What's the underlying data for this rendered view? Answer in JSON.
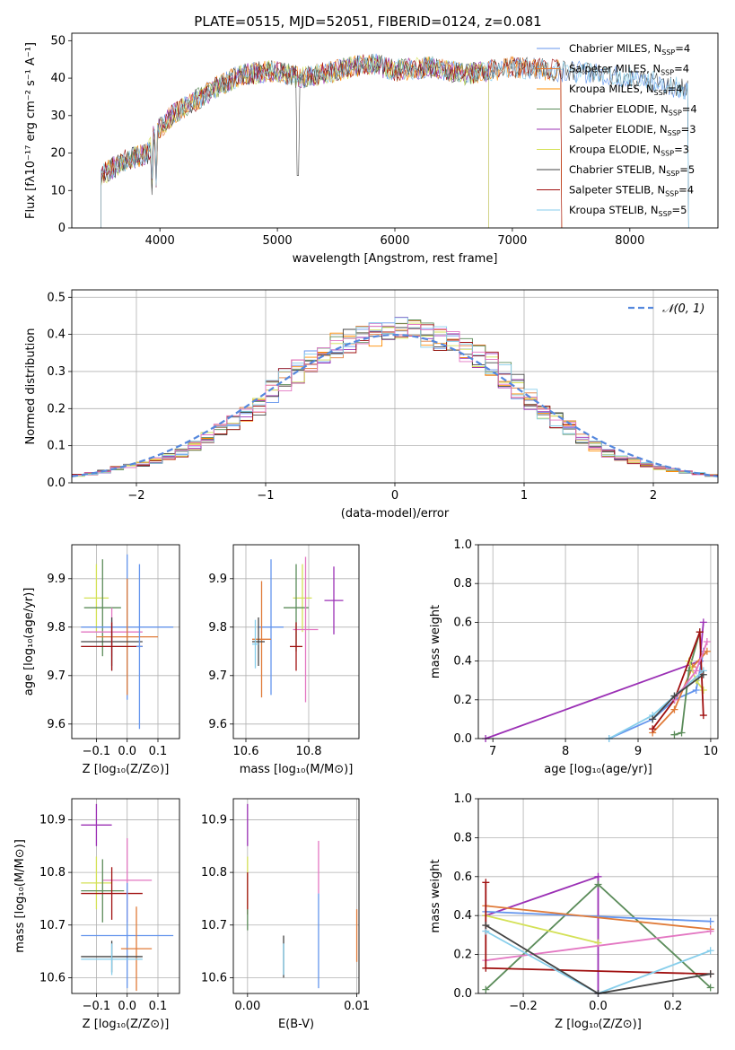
{
  "colors": {
    "C0": "#6495ed",
    "C1": "#e07b39",
    "C2": "#ff8c00",
    "C3": "#5b8c5a",
    "C4": "#9b30b5",
    "C5": "#d4e157",
    "C6": "#444444",
    "C7": "#a01010",
    "C8": "#87ceeb",
    "C9": "#e377c2",
    "CN": "#5588dd"
  },
  "chart_data": [
    {
      "type": "line",
      "title": "PLATE=0515, MJD=52051, FIBERID=0124, z=0.081",
      "xlabel": "wavelength [Angstrom, rest frame]",
      "ylabel": "Flux [fλ10⁻¹⁷ erg cm⁻² s⁻¹ A⁻¹]",
      "xlim": [
        3250,
        8750
      ],
      "ylim": [
        0,
        52
      ],
      "xticks": [
        "4000",
        "5000",
        "6000",
        "7000",
        "8000"
      ],
      "yticks": [
        "0",
        "10",
        "20",
        "30",
        "40",
        "50"
      ],
      "legend_position": "upper-right",
      "series": [
        {
          "name": "Chabrier MILES, N",
          "sub": "SSP",
          "tail": "=4",
          "color": "#6495ed",
          "x_range": [
            3500,
            8500
          ]
        },
        {
          "name": "Salpeter MILES, N",
          "sub": "SSP",
          "tail": "=4",
          "color": "#e07b39",
          "x_range": [
            3500,
            7420
          ]
        },
        {
          "name": "Kroupa MILES, N",
          "sub": "SSP",
          "tail": "=4",
          "color": "#ff8c00",
          "x_range": [
            3500,
            7420
          ]
        },
        {
          "name": "Chabrier ELODIE, N",
          "sub": "SSP",
          "tail": "=4",
          "color": "#5b8c5a",
          "x_range": [
            3500,
            6800
          ]
        },
        {
          "name": "Salpeter ELODIE, N",
          "sub": "SSP",
          "tail": "=3",
          "color": "#9b30b5",
          "x_range": [
            3500,
            6800
          ]
        },
        {
          "name": "Kroupa ELODIE, N",
          "sub": "SSP",
          "tail": "=3",
          "color": "#d4e157",
          "x_range": [
            3500,
            6800
          ]
        },
        {
          "name": "Chabrier STELIB, N",
          "sub": "SSP",
          "tail": "=5",
          "color": "#444444",
          "x_range": [
            3500,
            8500
          ]
        },
        {
          "name": "Salpeter STELIB, N",
          "sub": "SSP",
          "tail": "=4",
          "color": "#a01010",
          "x_range": [
            3500,
            7420
          ]
        },
        {
          "name": "Kroupa STELIB, N",
          "sub": "SSP",
          "tail": "=5",
          "color": "#87ceeb",
          "x_range": [
            3500,
            8500
          ]
        }
      ],
      "continuum": {
        "x": [
          3500,
          3700,
          3900,
          3950,
          4100,
          4300,
          4500,
          4700,
          5000,
          5200,
          5500,
          5800,
          6000,
          6300,
          6600,
          7000,
          7400,
          7800,
          8200,
          8500
        ],
        "y": [
          14,
          18,
          20,
          25,
          30,
          34,
          38,
          41,
          42,
          40,
          42,
          44,
          42,
          43,
          41,
          43,
          42,
          41,
          39,
          37
        ]
      }
    },
    {
      "type": "bar",
      "xlabel": "(data-model)/error",
      "ylabel": "Normed distribution",
      "xlim": [
        -2.5,
        2.5
      ],
      "ylim": [
        0,
        0.52
      ],
      "xticks": [
        "−2",
        "−1",
        "0",
        "1",
        "2"
      ],
      "yticks": [
        "0.0",
        "0.1",
        "0.2",
        "0.3",
        "0.4",
        "0.5"
      ],
      "grid": true,
      "legend": "𝒩(0, 1)",
      "legend_position": "upper-right",
      "bin_width": 0.1,
      "bin_start": -2.5,
      "base_values": [
        0.02,
        0.025,
        0.03,
        0.04,
        0.045,
        0.05,
        0.06,
        0.07,
        0.08,
        0.1,
        0.12,
        0.14,
        0.16,
        0.18,
        0.21,
        0.25,
        0.28,
        0.3,
        0.33,
        0.35,
        0.37,
        0.38,
        0.39,
        0.4,
        0.41,
        0.42,
        0.41,
        0.4,
        0.39,
        0.38,
        0.36,
        0.34,
        0.32,
        0.29,
        0.26,
        0.23,
        0.2,
        0.17,
        0.15,
        0.12,
        0.1,
        0.08,
        0.07,
        0.06,
        0.05,
        0.04,
        0.035,
        0.03,
        0.025,
        0.02
      ]
    },
    {
      "type": "scatter",
      "xlabel": "Z [log₁₀(Z/Z⊙)]",
      "ylabel": "age  [log₁₀(age/yr)]",
      "xlim": [
        -0.18,
        0.17
      ],
      "ylim": [
        9.57,
        9.97
      ],
      "xticks": [
        "−0.1",
        "0.0",
        "0.1"
      ],
      "yticks": [
        "9.6",
        "9.7",
        "9.8",
        "9.9"
      ],
      "points": [
        {
          "x": -0.1,
          "y": 9.86,
          "xe": 0.04,
          "ye": 0.07,
          "c": "#d4e157"
        },
        {
          "x": -0.08,
          "y": 9.84,
          "xe": 0.06,
          "ye": 0.1,
          "c": "#5b8c5a"
        },
        {
          "x": 0.0,
          "y": 9.8,
          "xe": 0.15,
          "ye": 0.15,
          "c": "#6495ed"
        },
        {
          "x": -0.05,
          "y": 9.79,
          "xe": 0.1,
          "ye": 0.05,
          "c": "#e377c2"
        },
        {
          "x": 0.0,
          "y": 9.78,
          "xe": 0.1,
          "ye": 0.12,
          "c": "#e07b39"
        },
        {
          "x": -0.05,
          "y": 9.77,
          "xe": 0.1,
          "ye": 0.05,
          "c": "#444444"
        },
        {
          "x": -0.05,
          "y": 9.76,
          "xe": 0.1,
          "ye": 0.05,
          "c": "#87ceeb"
        },
        {
          "x": -0.05,
          "y": 9.76,
          "xe": 0.1,
          "ye": 0.05,
          "c": "#a01010"
        },
        {
          "x": 0.04,
          "y": 9.76,
          "xe": 0.01,
          "ye": 0.17,
          "c": "#6495ed"
        }
      ]
    },
    {
      "type": "scatter",
      "xlabel": "mass [log₁₀(M/M⊙)]",
      "xlim": [
        10.56,
        10.96
      ],
      "ylim": [
        9.57,
        9.97
      ],
      "xticks": [
        "10.6",
        "10.8"
      ],
      "yticks": [
        "9.6",
        "9.7",
        "9.8",
        "9.9"
      ],
      "points": [
        {
          "x": 10.88,
          "y": 9.855,
          "xe": 0.03,
          "ye": 0.07,
          "c": "#9b30b5"
        },
        {
          "x": 10.78,
          "y": 9.86,
          "xe": 0.03,
          "ye": 0.07,
          "c": "#d4e157"
        },
        {
          "x": 10.76,
          "y": 9.84,
          "xe": 0.04,
          "ye": 0.09,
          "c": "#5b8c5a"
        },
        {
          "x": 10.68,
          "y": 9.8,
          "xe": 0.04,
          "ye": 0.14,
          "c": "#6495ed"
        },
        {
          "x": 10.79,
          "y": 9.795,
          "xe": 0.04,
          "ye": 0.15,
          "c": "#e377c2"
        },
        {
          "x": 10.65,
          "y": 9.775,
          "xe": 0.03,
          "ye": 0.12,
          "c": "#e07b39"
        },
        {
          "x": 10.64,
          "y": 9.77,
          "xe": 0.02,
          "ye": 0.05,
          "c": "#444444"
        },
        {
          "x": 10.63,
          "y": 9.765,
          "xe": 0.01,
          "ye": 0.05,
          "c": "#87ceeb"
        },
        {
          "x": 10.76,
          "y": 9.76,
          "xe": 0.02,
          "ye": 0.05,
          "c": "#a01010"
        }
      ]
    },
    {
      "type": "line",
      "xlabel": "age  [log₁₀(age/yr)]",
      "ylabel": "mass weight",
      "xlim": [
        6.8,
        10.1
      ],
      "ylim": [
        0,
        1
      ],
      "xticks": [
        "7",
        "8",
        "9",
        "10"
      ],
      "yticks": [
        "0.0",
        "0.2",
        "0.4",
        "0.6",
        "0.8",
        "1.0"
      ],
      "grid": true,
      "series": [
        {
          "c": "#9b30b5",
          "x": [
            6.9,
            9.85,
            9.9
          ],
          "y": [
            0,
            0.4,
            0.6
          ]
        },
        {
          "c": "#6495ed",
          "x": [
            8.6,
            9.2,
            9.5,
            9.8,
            9.9
          ],
          "y": [
            0,
            0.1,
            0.2,
            0.25,
            0.45
          ]
        },
        {
          "c": "#e07b39",
          "x": [
            9.2,
            9.5,
            9.75,
            9.95
          ],
          "y": [
            0.03,
            0.15,
            0.37,
            0.45
          ]
        },
        {
          "c": "#5b8c5a",
          "x": [
            9.5,
            9.6,
            9.7,
            9.85
          ],
          "y": [
            0.02,
            0.03,
            0.35,
            0.55
          ]
        },
        {
          "c": "#d4e157",
          "x": [
            9.7,
            9.8,
            9.9
          ],
          "y": [
            0.4,
            0.3,
            0.25
          ]
        },
        {
          "c": "#a01010",
          "x": [
            9.2,
            9.5,
            9.85,
            9.9
          ],
          "y": [
            0.05,
            0.2,
            0.55,
            0.12
          ]
        },
        {
          "c": "#87ceeb",
          "x": [
            8.6,
            9.2,
            9.5,
            9.9
          ],
          "y": [
            0,
            0.12,
            0.22,
            0.35
          ]
        },
        {
          "c": "#e377c2",
          "x": [
            9.5,
            9.8,
            9.95
          ],
          "y": [
            0.2,
            0.35,
            0.5
          ]
        },
        {
          "c": "#444444",
          "x": [
            9.2,
            9.5,
            9.9
          ],
          "y": [
            0.1,
            0.22,
            0.33
          ]
        }
      ]
    },
    {
      "type": "scatter",
      "xlabel": "Z [log₁₀(Z/Z⊙)]",
      "ylabel": "mass [log₁₀(M/M⊙)]",
      "xlim": [
        -0.18,
        0.17
      ],
      "ylim": [
        10.57,
        10.94
      ],
      "xticks": [
        "−0.1",
        "0.0",
        "0.1"
      ],
      "yticks": [
        "10.6",
        "10.7",
        "10.8",
        "10.9"
      ],
      "points": [
        {
          "x": -0.1,
          "y": 10.89,
          "xe": 0.05,
          "ye": 0.04,
          "c": "#9b30b5"
        },
        {
          "x": 0.0,
          "y": 10.785,
          "xe": 0.08,
          "ye": 0.08,
          "c": "#e377c2"
        },
        {
          "x": -0.1,
          "y": 10.78,
          "xe": 0.05,
          "ye": 0.05,
          "c": "#d4e157"
        },
        {
          "x": -0.08,
          "y": 10.765,
          "xe": 0.07,
          "ye": 0.06,
          "c": "#5b8c5a"
        },
        {
          "x": -0.05,
          "y": 10.76,
          "xe": 0.1,
          "ye": 0.05,
          "c": "#a01010"
        },
        {
          "x": 0.0,
          "y": 10.68,
          "xe": 0.15,
          "ye": 0.1,
          "c": "#6495ed"
        },
        {
          "x": 0.03,
          "y": 10.655,
          "xe": 0.05,
          "ye": 0.08,
          "c": "#e07b39"
        },
        {
          "x": -0.05,
          "y": 10.64,
          "xe": 0.1,
          "ye": 0.03,
          "c": "#444444"
        },
        {
          "x": -0.05,
          "y": 10.635,
          "xe": 0.1,
          "ye": 0.03,
          "c": "#87ceeb"
        }
      ]
    },
    {
      "type": "scatter",
      "xlabel": "E(B-V)",
      "xlim": [
        -0.0013,
        0.0102
      ],
      "ylim": [
        10.57,
        10.94
      ],
      "xticks": [
        "0.00",
        "0.01"
      ],
      "yticks": [
        "10.6",
        "10.7",
        "10.8",
        "10.9"
      ],
      "points": [
        {
          "x": 0.0,
          "y": 10.89,
          "ye": 0.04,
          "c": "#9b30b5"
        },
        {
          "x": 0.0,
          "y": 10.78,
          "ye": 0.05,
          "c": "#d4e157"
        },
        {
          "x": 0.0,
          "y": 10.76,
          "ye": 0.04,
          "c": "#a01010"
        },
        {
          "x": 0.0,
          "y": 10.71,
          "ye": 0.02,
          "c": "#5b8c5a"
        },
        {
          "x": 0.0065,
          "y": 10.81,
          "ye": 0.05,
          "c": "#e377c2"
        },
        {
          "x": 0.0065,
          "y": 10.67,
          "ye": 0.09,
          "c": "#6495ed"
        },
        {
          "x": 0.0033,
          "y": 10.64,
          "ye": 0.04,
          "c": "#444444"
        },
        {
          "x": 0.0033,
          "y": 10.635,
          "ye": 0.03,
          "c": "#87ceeb"
        },
        {
          "x": 0.01,
          "y": 10.68,
          "ye": 0.05,
          "c": "#e07b39"
        }
      ]
    },
    {
      "type": "line",
      "xlabel": "Z [log₁₀(Z/Z⊙)]",
      "ylabel": "mass weight",
      "xlim": [
        -0.32,
        0.32
      ],
      "ylim": [
        0,
        1
      ],
      "xticks": [
        "−0.2",
        "0.0",
        "0.2"
      ],
      "yticks": [
        "0.0",
        "0.2",
        "0.4",
        "0.6",
        "0.8",
        "1.0"
      ],
      "grid": true,
      "series": [
        {
          "c": "#9b30b5",
          "x": [
            -0.3,
            0.0,
            0.0
          ],
          "y": [
            0.4,
            0.6,
            0.0
          ]
        },
        {
          "c": "#5b8c5a",
          "x": [
            -0.3,
            0.0,
            0.3
          ],
          "y": [
            0.02,
            0.56,
            0.03
          ]
        },
        {
          "c": "#6495ed",
          "x": [
            -0.3,
            0.3
          ],
          "y": [
            0.42,
            0.37
          ]
        },
        {
          "c": "#e07b39",
          "x": [
            -0.3,
            0.3
          ],
          "y": [
            0.45,
            0.33
          ]
        },
        {
          "c": "#d4e157",
          "x": [
            -0.3,
            0.0
          ],
          "y": [
            0.4,
            0.26
          ]
        },
        {
          "c": "#e377c2",
          "x": [
            -0.3,
            0.3
          ],
          "y": [
            0.17,
            0.32
          ]
        },
        {
          "c": "#a01010",
          "x": [
            -0.3,
            -0.3,
            0.3
          ],
          "y": [
            0.57,
            0.13,
            0.1
          ]
        },
        {
          "c": "#87ceeb",
          "x": [
            -0.3,
            0.0,
            0.3
          ],
          "y": [
            0.32,
            0.0,
            0.22
          ]
        },
        {
          "c": "#444444",
          "x": [
            -0.3,
            0.0,
            0.3
          ],
          "y": [
            0.35,
            0.0,
            0.1
          ]
        }
      ]
    }
  ]
}
